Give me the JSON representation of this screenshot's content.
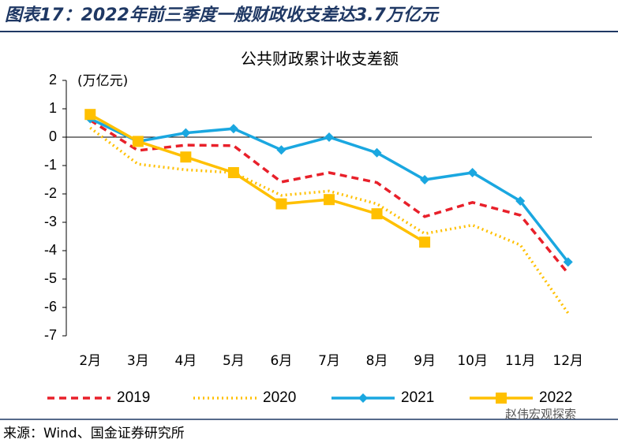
{
  "header": "图表17：2022年前三季度一般财政收支差达3.7万亿元",
  "source": "来源：Wind、国金证券研究所",
  "watermark": "赵伟宏观探索",
  "chart_data": {
    "type": "line",
    "title": "公共财政累计收支差额",
    "y_unit": "(万亿元)",
    "categories": [
      "2月",
      "3月",
      "4月",
      "5月",
      "6月",
      "7月",
      "8月",
      "9月",
      "10月",
      "11月",
      "12月"
    ],
    "ylim": [
      -7,
      2
    ],
    "yticks": [
      -7,
      -6,
      -5,
      -4,
      -3,
      -2,
      -1,
      0,
      1,
      2
    ],
    "legend": "bottom",
    "series": [
      {
        "name": "2019",
        "color": "#e8202a",
        "style": "dashed",
        "marker": "none",
        "values": [
          0.6,
          -0.47,
          -0.28,
          -0.3,
          -1.58,
          -1.25,
          -1.6,
          -2.8,
          -2.3,
          -2.75,
          -4.8
        ]
      },
      {
        "name": "2020",
        "color": "#ffc000",
        "style": "dotted",
        "marker": "none",
        "values": [
          0.33,
          -0.95,
          -1.15,
          -1.25,
          -2.05,
          -1.9,
          -2.35,
          -3.4,
          -3.1,
          -3.8,
          -6.2
        ]
      },
      {
        "name": "2021",
        "color": "#1aa7e0",
        "style": "solid",
        "marker": "diamond",
        "values": [
          0.65,
          -0.15,
          0.15,
          0.3,
          -0.45,
          0,
          -0.55,
          -1.5,
          -1.25,
          -2.25,
          -4.4
        ]
      },
      {
        "name": "2022",
        "color": "#ffc000",
        "style": "solid",
        "marker": "square",
        "values": [
          0.8,
          -0.15,
          -0.7,
          -1.25,
          -2.35,
          -2.2,
          -2.7,
          -3.7,
          null,
          null,
          null
        ]
      }
    ]
  }
}
